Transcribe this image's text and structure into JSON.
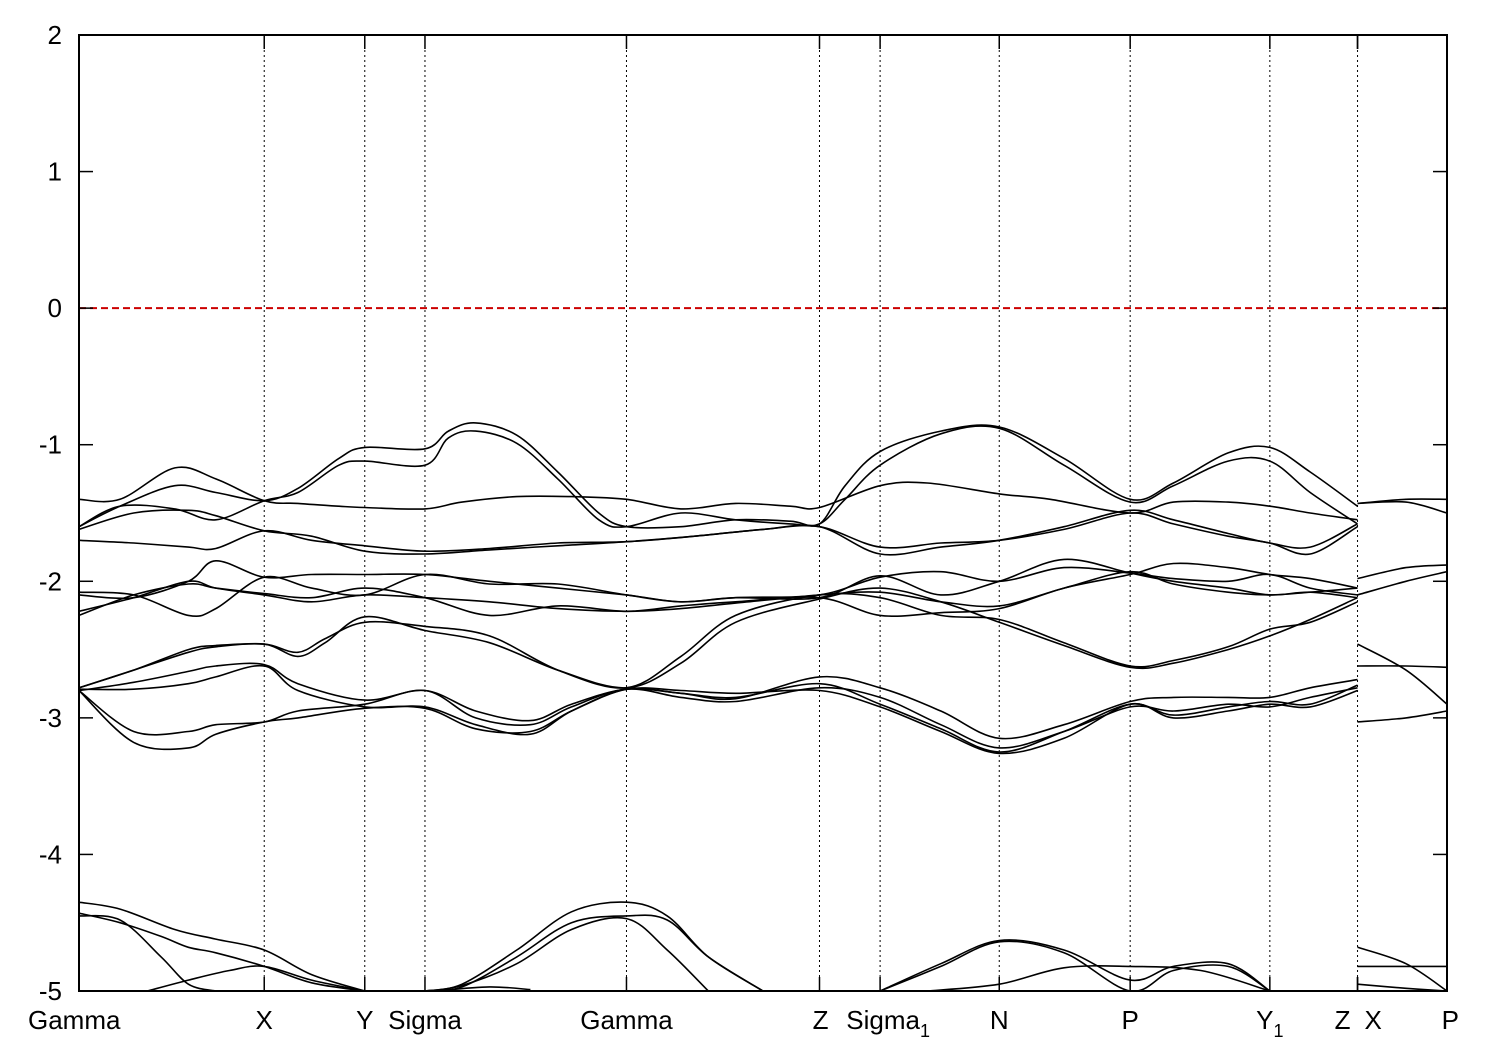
{
  "chart_data": {
    "type": "line",
    "title": "",
    "xlabel": "",
    "ylabel": "",
    "ylim": [
      -5,
      2
    ],
    "yticks": [
      2,
      1,
      0,
      -1,
      -2,
      -3,
      -4,
      -5
    ],
    "ytick_labels": [
      "2",
      "1",
      "0",
      "-1",
      "-2",
      "-3",
      "-4",
      "-5"
    ],
    "xlim": [
      0,
      10
    ],
    "grid": "vertical dotted lines at high-symmetry points",
    "legend": "none",
    "high_symmetry_points": [
      {
        "x": 0.0,
        "label": "Gamma",
        "sub": ""
      },
      {
        "x": 1.354,
        "label": "X",
        "sub": ""
      },
      {
        "x": 2.089,
        "label": "Y",
        "sub": ""
      },
      {
        "x": 2.529,
        "label": "Sigma",
        "sub": ""
      },
      {
        "x": 4.002,
        "label": "Gamma",
        "sub": ""
      },
      {
        "x": 5.413,
        "label": "Z",
        "sub": ""
      },
      {
        "x": 5.856,
        "label": "Sigma",
        "sub": "1"
      },
      {
        "x": 6.727,
        "label": "N",
        "sub": ""
      },
      {
        "x": 7.684,
        "label": "P",
        "sub": ""
      },
      {
        "x": 8.705,
        "label": "Y",
        "sub": "1"
      },
      {
        "x": 9.346,
        "label": "Z",
        "sub": ""
      },
      {
        "x": 9.346,
        "label": "X",
        "sub": ""
      },
      {
        "x": 10.0,
        "label": "P",
        "sub": ""
      }
    ],
    "fermi_level": {
      "y": 0,
      "color": "#cc0000",
      "style": "dashed"
    },
    "band_color": "#000000",
    "series": [
      {
        "x": [
          0,
          0.3,
          0.7,
          1.0,
          1.354,
          1.6,
          1.9,
          2.089,
          2.529,
          2.8,
          3.2,
          3.6,
          4.002,
          4.4,
          4.8,
          5.2,
          5.413,
          5.856,
          6.2,
          6.727,
          7.1,
          7.684,
          8.0,
          8.4,
          8.705,
          9.0,
          9.346
        ],
        "y": [
          -1.4,
          -1.4,
          -1.17,
          -1.25,
          -1.41,
          -1.43,
          -1.45,
          -1.46,
          -1.47,
          -1.42,
          -1.38,
          -1.38,
          -1.4,
          -1.47,
          -1.43,
          -1.45,
          -1.46,
          -1.3,
          -1.28,
          -1.36,
          -1.4,
          -1.5,
          -1.42,
          -1.42,
          -1.45,
          -1.5,
          -1.55
        ]
      },
      {
        "x": [
          0,
          0.3,
          0.7,
          1.0,
          1.354,
          1.6,
          1.9,
          2.089,
          2.529,
          2.7,
          2.9,
          3.2,
          3.5,
          3.8,
          4.002,
          4.4,
          4.8,
          5.2,
          5.413,
          5.6,
          5.856,
          6.3,
          6.727,
          7.2,
          7.684,
          8.0,
          8.4,
          8.705,
          9.0,
          9.346
        ],
        "y": [
          -1.6,
          -1.45,
          -1.3,
          -1.35,
          -1.41,
          -1.32,
          -1.1,
          -1.02,
          -1.03,
          -0.9,
          -0.84,
          -0.93,
          -1.2,
          -1.5,
          -1.6,
          -1.6,
          -1.55,
          -1.56,
          -1.58,
          -1.3,
          -1.05,
          -0.9,
          -0.87,
          -1.1,
          -1.4,
          -1.28,
          -1.06,
          -1.02,
          -1.2,
          -1.45
        ]
      },
      {
        "x": [
          0,
          0.3,
          0.7,
          1.0,
          1.354,
          1.6,
          1.9,
          2.089,
          2.529,
          2.7,
          2.9,
          3.2,
          3.5,
          3.8,
          4.002,
          4.4,
          4.8,
          5.2,
          5.413,
          5.6,
          5.856,
          6.3,
          6.727,
          7.2,
          7.684,
          8.0,
          8.4,
          8.705,
          9.0,
          9.346
        ],
        "y": [
          -1.6,
          -1.45,
          -1.47,
          -1.55,
          -1.41,
          -1.35,
          -1.15,
          -1.12,
          -1.15,
          -0.95,
          -0.9,
          -0.99,
          -1.25,
          -1.55,
          -1.6,
          -1.5,
          -1.55,
          -1.58,
          -1.58,
          -1.4,
          -1.15,
          -0.92,
          -0.88,
          -1.15,
          -1.42,
          -1.3,
          -1.12,
          -1.12,
          -1.35,
          -1.58
        ]
      },
      {
        "x": [
          0,
          0.4,
          0.8,
          1.0,
          1.354,
          1.7,
          2.089,
          2.529,
          3.0,
          3.5,
          4.002,
          4.5,
          5.0,
          5.413,
          5.856,
          6.3,
          6.727,
          7.2,
          7.684,
          8.0,
          8.4,
          8.705,
          9.0,
          9.346
        ],
        "y": [
          -1.7,
          -1.72,
          -1.75,
          -1.76,
          -1.63,
          -1.7,
          -1.74,
          -1.78,
          -1.76,
          -1.72,
          -1.71,
          -1.67,
          -1.62,
          -1.6,
          -1.75,
          -1.72,
          -1.7,
          -1.62,
          -1.5,
          -1.58,
          -1.67,
          -1.72,
          -1.8,
          -1.6
        ]
      },
      {
        "x": [
          0,
          0.4,
          0.8,
          1.0,
          1.354,
          1.7,
          2.089,
          2.529,
          3.0,
          3.5,
          4.002,
          4.5,
          5.0,
          5.413,
          5.856,
          6.3,
          6.727,
          7.2,
          7.684,
          8.0,
          8.4,
          8.705,
          9.0,
          9.346
        ],
        "y": [
          -1.62,
          -1.5,
          -1.48,
          -1.52,
          -1.63,
          -1.67,
          -1.78,
          -1.8,
          -1.77,
          -1.74,
          -1.71,
          -1.67,
          -1.62,
          -1.6,
          -1.8,
          -1.75,
          -1.7,
          -1.6,
          -1.48,
          -1.55,
          -1.65,
          -1.72,
          -1.75,
          -1.58
        ]
      },
      {
        "x": [
          0,
          0.4,
          0.8,
          1.0,
          1.354,
          1.7,
          2.089,
          2.529,
          3.0,
          3.5,
          4.002,
          4.4,
          4.8,
          5.413,
          5.856,
          6.3,
          6.727,
          7.2,
          7.684,
          8.0,
          8.4,
          8.705,
          9.0,
          9.346
        ],
        "y": [
          -2.1,
          -2.12,
          -2.0,
          -1.85,
          -1.97,
          -1.95,
          -1.95,
          -1.95,
          -2.0,
          -2.05,
          -2.1,
          -2.15,
          -2.12,
          -2.12,
          -1.96,
          -2.1,
          -2.0,
          -1.84,
          -1.94,
          -2.0,
          -2.05,
          -2.1,
          -2.08,
          -2.12
        ]
      },
      {
        "x": [
          0,
          0.4,
          0.8,
          1.0,
          1.354,
          1.7,
          2.089,
          2.529,
          3.0,
          3.5,
          4.002,
          4.4,
          4.8,
          5.413,
          5.856,
          6.3,
          6.727,
          7.2,
          7.684,
          8.0,
          8.4,
          8.705,
          9.0,
          9.346
        ],
        "y": [
          -2.08,
          -2.1,
          -2.25,
          -2.2,
          -1.97,
          -2.05,
          -2.1,
          -1.95,
          -2.02,
          -2.02,
          -2.1,
          -2.15,
          -2.12,
          -2.1,
          -1.97,
          -1.93,
          -2.0,
          -1.9,
          -1.94,
          -1.98,
          -2.0,
          -1.95,
          -2.05,
          -2.1
        ]
      },
      {
        "x": [
          0,
          0.4,
          0.8,
          1.0,
          1.354,
          1.7,
          2.089,
          2.529,
          3.0,
          3.5,
          4.002,
          4.4,
          4.8,
          5.413,
          5.856,
          6.3,
          6.727,
          7.2,
          7.684,
          8.0,
          8.4,
          8.705,
          9.0,
          9.346
        ],
        "y": [
          -2.25,
          -2.1,
          -2.02,
          -2.05,
          -2.09,
          -2.12,
          -2.05,
          -2.12,
          -2.25,
          -2.18,
          -2.22,
          -2.18,
          -2.15,
          -2.12,
          -2.25,
          -2.23,
          -2.2,
          -2.05,
          -1.95,
          -1.87,
          -1.9,
          -1.95,
          -1.98,
          -2.05
        ]
      },
      {
        "x": [
          0,
          0.4,
          0.8,
          1.0,
          1.354,
          1.7,
          2.089,
          2.529,
          3.0,
          3.5,
          4.002,
          4.4,
          4.8,
          5.413,
          5.856,
          6.3,
          6.727,
          7.2,
          7.684,
          8.0,
          8.4,
          8.705,
          9.0,
          9.346
        ],
        "y": [
          -2.22,
          -2.12,
          -2.0,
          -2.05,
          -2.1,
          -2.15,
          -2.1,
          -2.12,
          -2.15,
          -2.2,
          -2.22,
          -2.2,
          -2.16,
          -2.1,
          -2.08,
          -2.15,
          -2.18,
          -2.05,
          -1.93,
          -2.02,
          -2.08,
          -2.1,
          -2.08,
          -2.05
        ]
      },
      {
        "x": [
          0,
          0.4,
          0.8,
          1.0,
          1.354,
          1.6,
          1.8,
          2.089,
          2.529,
          3.0,
          3.5,
          4.002,
          4.4,
          4.8,
          5.413,
          5.856,
          6.3,
          6.727,
          7.2,
          7.684,
          8.0,
          8.4,
          8.705,
          9.0,
          9.346
        ],
        "y": [
          -2.78,
          -2.65,
          -2.52,
          -2.48,
          -2.46,
          -2.55,
          -2.45,
          -2.26,
          -2.36,
          -2.45,
          -2.65,
          -2.78,
          -2.6,
          -2.3,
          -2.13,
          -2.05,
          -2.15,
          -2.3,
          -2.47,
          -2.63,
          -2.6,
          -2.5,
          -2.4,
          -2.28,
          -2.12
        ]
      },
      {
        "x": [
          0,
          0.4,
          0.8,
          1.0,
          1.354,
          1.6,
          1.8,
          2.089,
          2.529,
          3.0,
          3.5,
          4.002,
          4.4,
          4.8,
          5.413,
          5.856,
          6.3,
          6.727,
          7.2,
          7.684,
          8.0,
          8.4,
          8.705,
          9.0,
          9.346
        ],
        "y": [
          -2.78,
          -2.65,
          -2.5,
          -2.47,
          -2.46,
          -2.52,
          -2.42,
          -2.3,
          -2.33,
          -2.4,
          -2.65,
          -2.78,
          -2.55,
          -2.25,
          -2.1,
          -2.12,
          -2.25,
          -2.28,
          -2.45,
          -2.62,
          -2.58,
          -2.48,
          -2.35,
          -2.3,
          -2.15
        ]
      },
      {
        "x": [
          0,
          0.4,
          0.8,
          1.0,
          1.354,
          1.6,
          2.089,
          2.529,
          2.9,
          3.3,
          3.6,
          4.002,
          4.4,
          4.8,
          5.413,
          5.856,
          6.3,
          6.727,
          7.2,
          7.684,
          8.0,
          8.4,
          8.705,
          9.0,
          9.346
        ],
        "y": [
          -2.8,
          -2.74,
          -2.66,
          -2.62,
          -2.61,
          -2.75,
          -2.87,
          -2.8,
          -2.95,
          -3.02,
          -2.9,
          -2.79,
          -2.82,
          -2.86,
          -2.7,
          -2.78,
          -2.95,
          -3.15,
          -3.05,
          -2.88,
          -2.85,
          -2.85,
          -2.85,
          -2.78,
          -2.72
        ]
      },
      {
        "x": [
          0,
          0.4,
          0.8,
          1.0,
          1.354,
          1.6,
          2.089,
          2.529,
          2.9,
          3.3,
          3.6,
          4.002,
          4.4,
          4.8,
          5.413,
          5.856,
          6.3,
          6.727,
          7.2,
          7.684,
          8.0,
          8.4,
          8.705,
          9.0,
          9.346
        ],
        "y": [
          -2.8,
          -3.1,
          -3.1,
          -3.05,
          -3.03,
          -2.95,
          -2.9,
          -2.8,
          -3.0,
          -3.05,
          -2.92,
          -2.79,
          -2.85,
          -2.88,
          -2.78,
          -2.85,
          -3.05,
          -3.22,
          -3.1,
          -2.92,
          -2.95,
          -2.9,
          -2.92,
          -2.85,
          -2.78
        ]
      },
      {
        "x": [
          0,
          0.4,
          0.8,
          1.0,
          1.354,
          1.6,
          2.089,
          2.529,
          2.9,
          3.3,
          3.6,
          4.002,
          4.4,
          4.8,
          5.413,
          5.856,
          6.3,
          6.727,
          7.2,
          7.684,
          8.0,
          8.4,
          8.705,
          9.0,
          9.346
        ],
        "y": [
          -2.8,
          -3.18,
          -3.22,
          -3.12,
          -3.03,
          -3.0,
          -2.93,
          -2.93,
          -3.08,
          -3.1,
          -2.95,
          -2.79,
          -2.8,
          -2.82,
          -2.8,
          -2.92,
          -3.1,
          -3.26,
          -3.15,
          -2.9,
          -3.0,
          -2.95,
          -2.9,
          -2.92,
          -2.8
        ]
      },
      {
        "x": [
          0,
          0.4,
          0.8,
          1.0,
          1.354,
          1.6,
          2.089,
          2.529,
          2.9,
          3.3,
          3.6,
          4.002,
          4.4,
          4.8,
          5.413,
          5.856,
          6.3,
          6.727,
          7.2,
          7.684,
          8.0,
          8.4,
          8.705,
          9.0,
          9.346
        ],
        "y": [
          -2.79,
          -2.79,
          -2.75,
          -2.7,
          -2.62,
          -2.8,
          -2.92,
          -2.92,
          -3.05,
          -3.12,
          -2.95,
          -2.79,
          -2.82,
          -2.85,
          -2.75,
          -2.9,
          -3.08,
          -3.25,
          -3.1,
          -2.9,
          -2.98,
          -2.92,
          -2.88,
          -2.9,
          -2.76
        ]
      },
      {
        "x": [
          0,
          0.3,
          0.7,
          1.0,
          1.354,
          1.7,
          2.089
        ],
        "y": [
          -4.35,
          -4.4,
          -4.55,
          -4.62,
          -4.7,
          -4.88,
          -5.0
        ]
      },
      {
        "x": [
          0,
          0.3,
          0.6,
          0.8,
          1.0
        ],
        "y": [
          -4.45,
          -4.48,
          -4.75,
          -4.95,
          -5.0
        ]
      },
      {
        "x": [
          0,
          0.3,
          0.6,
          0.8,
          1.0,
          1.354,
          1.7,
          2.089
        ],
        "y": [
          -4.43,
          -4.5,
          -4.6,
          -4.68,
          -4.72,
          -4.82,
          -4.94,
          -5.0
        ]
      },
      {
        "x": [
          0.5,
          0.8,
          1.1,
          1.354,
          1.7,
          2.089
        ],
        "y": [
          -5.0,
          -4.92,
          -4.85,
          -4.82,
          -4.92,
          -5.0
        ]
      },
      {
        "x": [
          2.529,
          2.8,
          3.2,
          3.6,
          4.002,
          4.3,
          4.6,
          5.0
        ],
        "y": [
          -5.0,
          -4.95,
          -4.7,
          -4.42,
          -4.35,
          -4.45,
          -4.75,
          -5.0
        ]
      },
      {
        "x": [
          2.529,
          2.8,
          3.2,
          3.6,
          4.002,
          4.3,
          4.6,
          5.0
        ],
        "y": [
          -5.0,
          -4.97,
          -4.75,
          -4.5,
          -4.45,
          -4.48,
          -4.75,
          -5.0
        ]
      },
      {
        "x": [
          2.529,
          2.8,
          3.2,
          3.6,
          4.002,
          4.3,
          4.6
        ],
        "y": [
          -5.0,
          -4.96,
          -4.8,
          -4.55,
          -4.47,
          -4.7,
          -5.0
        ]
      },
      {
        "x": [
          2.6,
          3.0,
          3.3
        ],
        "y": [
          -5.0,
          -4.97,
          -4.99
        ]
      },
      {
        "x": [
          5.856,
          6.3,
          6.727,
          7.2,
          7.684,
          8.0,
          8.4,
          8.705
        ],
        "y": [
          -5.0,
          -4.8,
          -4.63,
          -4.7,
          -4.92,
          -4.82,
          -4.8,
          -5.0
        ]
      },
      {
        "x": [
          5.856,
          6.3,
          6.727,
          7.2,
          7.684,
          8.0,
          8.4,
          8.705
        ],
        "y": [
          -5.0,
          -4.82,
          -4.64,
          -4.72,
          -5.0,
          -4.85,
          -4.82,
          -5.0
        ]
      },
      {
        "x": [
          6.2,
          6.727,
          7.2,
          7.684,
          8.2,
          8.705
        ],
        "y": [
          -5.0,
          -4.95,
          -4.83,
          -4.82,
          -4.85,
          -5.0
        ]
      },
      {
        "x": [
          9.346,
          9.7,
          10.0
        ],
        "y": [
          -1.43,
          -1.42,
          -1.5
        ]
      },
      {
        "x": [
          9.346,
          9.7,
          10.0
        ],
        "y": [
          -1.43,
          -1.4,
          -1.4
        ]
      },
      {
        "x": [
          9.346,
          9.7,
          10.0
        ],
        "y": [
          -2.1,
          -2.0,
          -1.93
        ]
      },
      {
        "x": [
          9.346,
          9.7,
          10.0
        ],
        "y": [
          -1.98,
          -1.9,
          -1.88
        ]
      },
      {
        "x": [
          9.346,
          9.7,
          10.0
        ],
        "y": [
          -2.46,
          -2.65,
          -2.9
        ]
      },
      {
        "x": [
          9.346,
          9.7,
          10.0
        ],
        "y": [
          -2.62,
          -2.62,
          -2.63
        ]
      },
      {
        "x": [
          9.346,
          9.7,
          10.0
        ],
        "y": [
          -3.03,
          -3.0,
          -2.95
        ]
      },
      {
        "x": [
          9.346,
          9.7,
          10.0
        ],
        "y": [
          -4.68,
          -4.8,
          -5.0
        ]
      },
      {
        "x": [
          9.346,
          9.7,
          10.0
        ],
        "y": [
          -4.82,
          -4.82,
          -4.82
        ]
      },
      {
        "x": [
          9.346,
          9.7,
          10.0
        ],
        "y": [
          -4.95,
          -4.98,
          -5.0
        ]
      }
    ]
  }
}
